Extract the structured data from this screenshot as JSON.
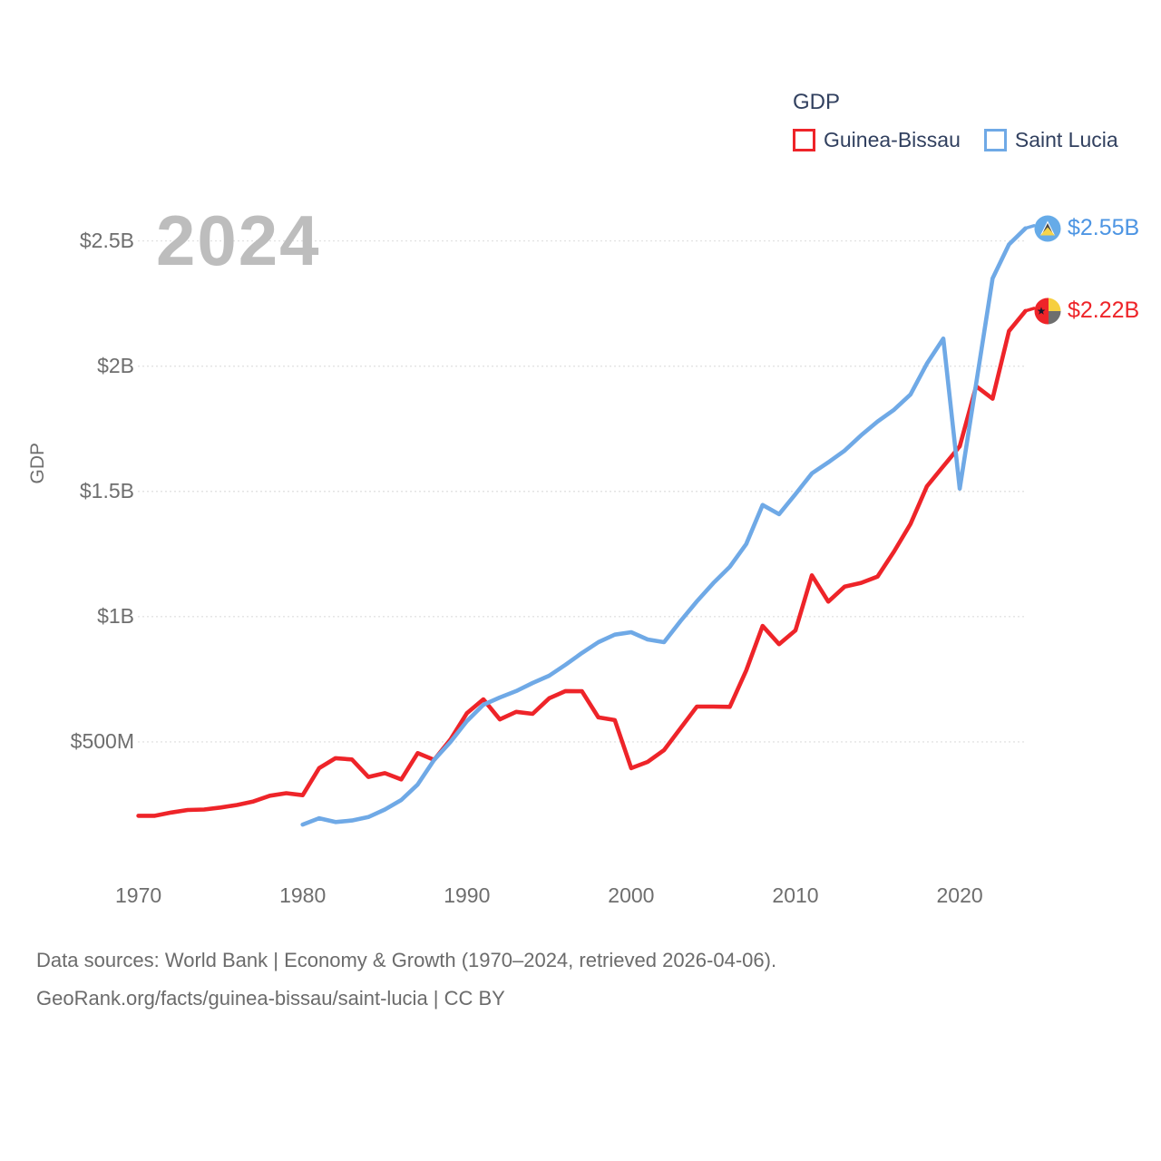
{
  "legend": {
    "title": "GDP",
    "items": [
      {
        "label": "Guinea-Bissau",
        "color": "#ee2429"
      },
      {
        "label": "Saint Lucia",
        "color": "#6fa9e6"
      }
    ]
  },
  "watermark": {
    "text": "2024"
  },
  "end_labels": [
    {
      "series": "Guinea-Bissau",
      "label": "$2.22B",
      "color": "#ee2429"
    },
    {
      "series": "Saint Lucia",
      "label": "$2.55B",
      "color": "#4d95e3"
    }
  ],
  "footer": {
    "line1": "Data sources: World Bank | Economy & Growth (1970–2024, retrieved 2026-04-06).",
    "line2": "GeoRank.org/facts/guinea-bissau/saint-lucia | CC BY"
  },
  "chart_data": {
    "type": "line",
    "title": "GDP",
    "ylabel": "GDP",
    "unit": "USD",
    "x_range": [
      1970,
      2024
    ],
    "ylim_millions": [
      0,
      2630
    ],
    "grid": "horizontal-dotted",
    "legend_position": "top-right",
    "y_ticks": [
      {
        "value_millions": 500,
        "label": "$500M"
      },
      {
        "value_millions": 1000,
        "label": "$1B"
      },
      {
        "value_millions": 1500,
        "label": "$1.5B"
      },
      {
        "value_millions": 2000,
        "label": "$2B"
      },
      {
        "value_millions": 2500,
        "label": "$2.5B"
      }
    ],
    "x_ticks": [
      {
        "value": 1970,
        "label": "1970"
      },
      {
        "value": 1980,
        "label": "1980"
      },
      {
        "value": 1990,
        "label": "1990"
      },
      {
        "value": 2000,
        "label": "2000"
      },
      {
        "value": 2010,
        "label": "2010"
      },
      {
        "value": 2020,
        "label": "2020"
      }
    ],
    "series": [
      {
        "name": "Guinea-Bissau",
        "color": "#ee2429",
        "start_year": 1970,
        "end_year": 2024,
        "end_value_label": "$2.22B",
        "values_millions": [
          205,
          205,
          218,
          228,
          230,
          238,
          248,
          262,
          285,
          295,
          287,
          395,
          435,
          430,
          360,
          375,
          350,
          455,
          428,
          510,
          615,
          670,
          590,
          620,
          612,
          674,
          703,
          702,
          598,
          587,
          395,
          420,
          467,
          554,
          641,
          641,
          640,
          785,
          963,
          890,
          945,
          1165,
          1060,
          1120,
          1135,
          1160,
          1260,
          1370,
          1520,
          1600,
          1680,
          1920,
          1870,
          2140,
          2220
        ]
      },
      {
        "name": "Saint Lucia",
        "color": "#6fa9e6",
        "start_year": 1980,
        "end_year": 2024,
        "end_value_label": "$2.55B",
        "values_millions": [
          170,
          195,
          180,
          186,
          200,
          230,
          268,
          330,
          428,
          500,
          583,
          648,
          677,
          703,
          735,
          764,
          808,
          855,
          898,
          928,
          938,
          909,
          898,
          982,
          1061,
          1134,
          1199,
          1290,
          1446,
          1409,
          1489,
          1572,
          1616,
          1663,
          1724,
          1779,
          1826,
          1887,
          2010,
          2110,
          1511,
          1930,
          2350,
          2486,
          2550
        ]
      }
    ]
  }
}
